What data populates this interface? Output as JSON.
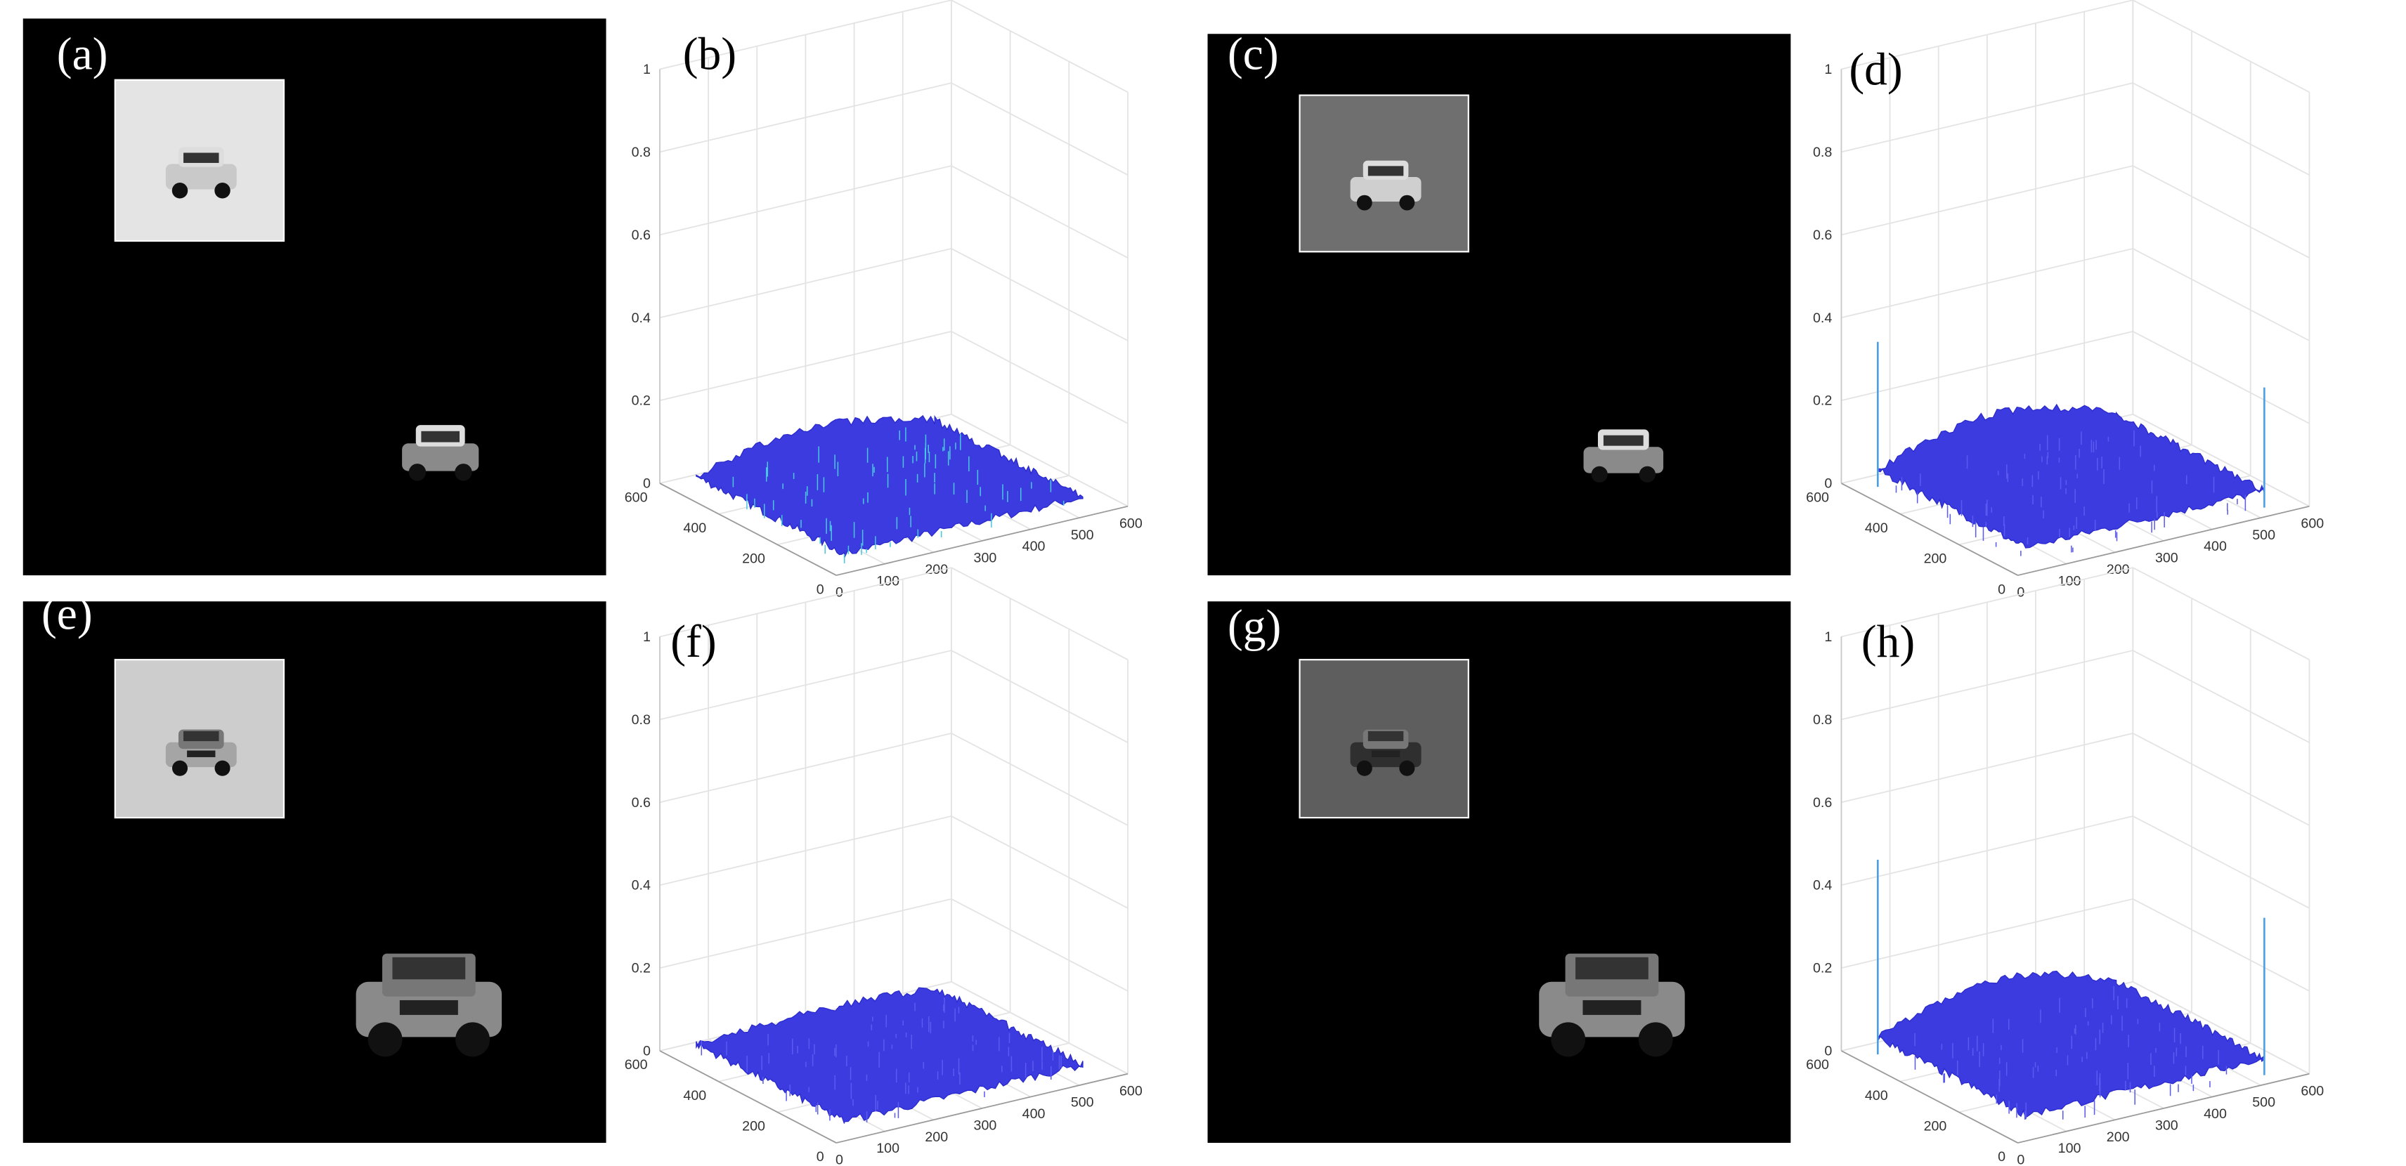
{
  "panels": [
    {
      "label": "(a)"
    },
    {
      "label": "(b)",
      "zlim": [
        0,
        1
      ],
      "zticks": [
        0,
        0.2,
        0.4,
        0.6,
        0.8,
        1
      ],
      "xlim": [
        0,
        600
      ],
      "xticks": [
        0,
        100,
        200,
        300,
        400,
        500,
        600
      ],
      "ylim": [
        0,
        600
      ],
      "yticks": [
        0,
        200,
        400,
        600
      ]
    },
    {
      "label": "(c)"
    },
    {
      "label": "(d)",
      "zlim": [
        0,
        1
      ],
      "zticks": [
        0,
        0.2,
        0.4,
        0.6,
        0.8,
        1
      ],
      "xlim": [
        0,
        600
      ],
      "xticks": [
        0,
        100,
        200,
        300,
        400,
        500,
        600
      ],
      "ylim": [
        0,
        600
      ],
      "yticks": [
        0,
        200,
        400,
        600
      ]
    },
    {
      "label": "(e)"
    },
    {
      "label": "(f)",
      "zlim": [
        0,
        1
      ],
      "zticks": [
        0,
        0.2,
        0.4,
        0.6,
        0.8,
        1
      ],
      "xlim": [
        0,
        600
      ],
      "xticks": [
        0,
        100,
        200,
        300,
        400,
        500,
        600
      ],
      "ylim": [
        0,
        600
      ],
      "yticks": [
        0,
        200,
        400,
        600
      ]
    },
    {
      "label": "(g)"
    },
    {
      "label": "(h)",
      "zlim": [
        0,
        1
      ],
      "zticks": [
        0,
        0.2,
        0.4,
        0.6,
        0.8,
        1
      ],
      "xlim": [
        0,
        600
      ],
      "xticks": [
        0,
        100,
        200,
        300,
        400,
        500,
        600
      ],
      "ylim": [
        0,
        600
      ],
      "yticks": [
        0,
        200,
        400,
        600
      ]
    }
  ]
}
